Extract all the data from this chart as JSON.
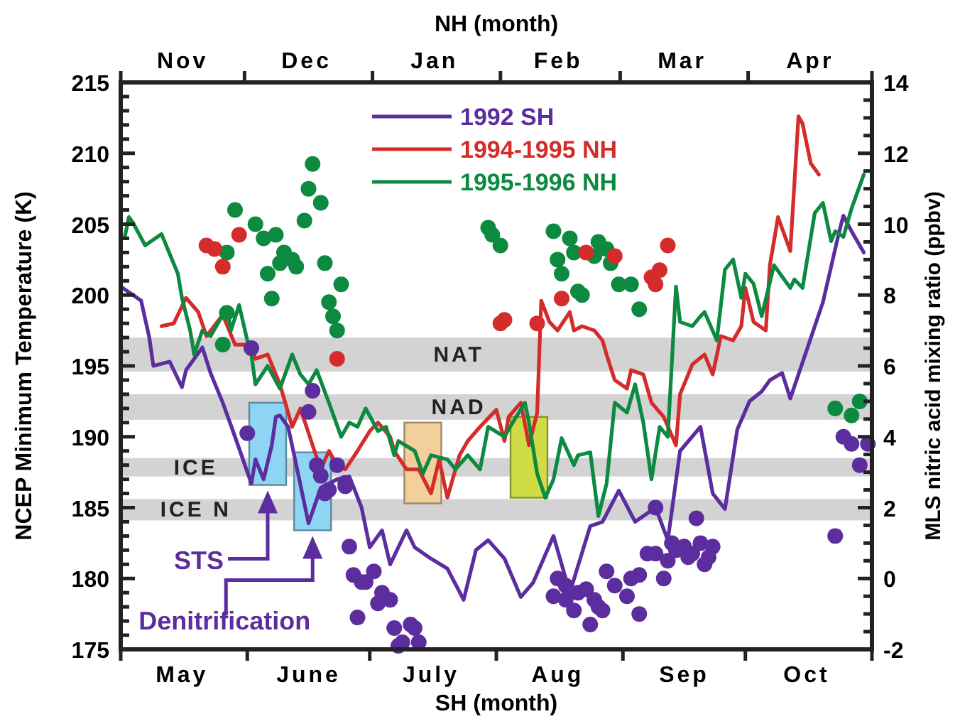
{
  "chart_data": {
    "type": "line",
    "xlabel": "SH  (month)",
    "x2label": "NH  (month)",
    "ylabel": "NCEP Minimum Temperature  (K)",
    "y2label": "MLS nitric acid mixing ratio (ppbv)",
    "legend": "top",
    "xlim": [
      "--05-01",
      "--11-01"
    ],
    "x2lim": [
      "1995-11-01",
      "1996-05-01"
    ],
    "xticks": [
      {
        "value": "--05-01",
        "label": null
      },
      {
        "value": "--05-16",
        "label": "May"
      },
      {
        "value": "--06-01",
        "label": null
      },
      {
        "value": "--06-16",
        "label": "June"
      },
      {
        "value": "--07-01",
        "label": null
      },
      {
        "value": "--07-16",
        "label": "July"
      },
      {
        "value": "--08-01",
        "label": null
      },
      {
        "value": "--08-16",
        "label": "Aug"
      },
      {
        "value": "--09-01",
        "label": null
      },
      {
        "value": "--09-16",
        "label": "Sep"
      },
      {
        "value": "--10-01",
        "label": null
      },
      {
        "value": "--10-16",
        "label": "Oct"
      },
      {
        "value": "--11-01",
        "label": null
      }
    ],
    "x2ticks": [
      {
        "value": "1995-11-01",
        "label": null
      },
      {
        "value": "1995-11-16",
        "label": "Nov"
      },
      {
        "value": "1995-12-01",
        "label": null
      },
      {
        "value": "1995-12-16",
        "label": "Dec"
      },
      {
        "value": "1996-01-01",
        "label": null
      },
      {
        "value": "1996-01-16",
        "label": "Jan"
      },
      {
        "value": "1996-02-01",
        "label": null
      },
      {
        "value": "1996-02-15",
        "label": "Feb"
      },
      {
        "value": "1996-03-01",
        "label": null
      },
      {
        "value": "1996-03-16",
        "label": "Mar"
      },
      {
        "value": "1996-04-01",
        "label": null
      },
      {
        "value": "1996-04-16",
        "label": "Apr"
      },
      {
        "value": "1996-05-01",
        "label": null
      }
    ],
    "ylim": [
      175,
      215
    ],
    "yticks": [
      175,
      {
        "value": 176,
        "label": null
      },
      {
        "value": 177,
        "label": null
      },
      {
        "value": 178,
        "label": null
      },
      {
        "value": 179,
        "label": null
      },
      180,
      {
        "value": 181,
        "label": null
      },
      {
        "value": 182,
        "label": null
      },
      {
        "value": 183,
        "label": null
      },
      {
        "value": 184,
        "label": null
      },
      185,
      {
        "value": 186,
        "label": null
      },
      {
        "value": 187,
        "label": null
      },
      {
        "value": 188,
        "label": null
      },
      {
        "value": 189,
        "label": null
      },
      190,
      {
        "value": 191,
        "label": null
      },
      {
        "value": 192,
        "label": null
      },
      {
        "value": 193,
        "label": null
      },
      {
        "value": 194,
        "label": null
      },
      195,
      {
        "value": 196,
        "label": null
      },
      {
        "value": 197,
        "label": null
      },
      {
        "value": 198,
        "label": null
      },
      {
        "value": 199,
        "label": null
      },
      200,
      {
        "value": 201,
        "label": null
      },
      {
        "value": 202,
        "label": null
      },
      {
        "value": 203,
        "label": null
      },
      {
        "value": 204,
        "label": null
      },
      205,
      {
        "value": 206,
        "label": null
      },
      {
        "value": 207,
        "label": null
      },
      {
        "value": 208,
        "label": null
      },
      {
        "value": 209,
        "label": null
      },
      210,
      {
        "value": 211,
        "label": null
      },
      {
        "value": 212,
        "label": null
      },
      {
        "value": 213,
        "label": null
      },
      {
        "value": 214,
        "label": null
      },
      215
    ],
    "y2lim": [
      -2,
      14
    ],
    "y2ticks": [
      -2,
      {
        "value": -1.5,
        "label": null
      },
      {
        "value": -1,
        "label": null
      },
      {
        "value": -0.5,
        "label": null
      },
      0,
      {
        "value": 0.5,
        "label": null
      },
      {
        "value": 1,
        "label": null
      },
      {
        "value": 1.5,
        "label": null
      },
      2,
      {
        "value": 2.5,
        "label": null
      },
      {
        "value": 3,
        "label": null
      },
      {
        "value": 3.5,
        "label": null
      },
      4,
      {
        "value": 4.5,
        "label": null
      },
      {
        "value": 5,
        "label": null
      },
      {
        "value": 5.5,
        "label": null
      },
      6,
      {
        "value": 6.5,
        "label": null
      },
      {
        "value": 7,
        "label": null
      },
      {
        "value": 7.5,
        "label": null
      },
      8,
      {
        "value": 8.5,
        "label": null
      },
      {
        "value": 9,
        "label": null
      },
      {
        "value": 9.5,
        "label": null
      },
      10,
      {
        "value": 10.5,
        "label": null
      },
      {
        "value": 11,
        "label": null
      },
      {
        "value": 11.5,
        "label": null
      },
      12,
      {
        "value": 12.5,
        "label": null
      },
      {
        "value": 13,
        "label": null
      },
      {
        "value": 13.5,
        "label": null
      },
      14
    ],
    "bands": [
      {
        "axis": "y",
        "from": 194.6,
        "to": 197.0,
        "label": "NAT",
        "color": "#d3d3d3"
      },
      {
        "axis": "y",
        "from": 191.2,
        "to": 193.0,
        "label": "NAD",
        "color": "#d3d3d3"
      },
      {
        "axis": "y",
        "from": 187.2,
        "to": 188.5,
        "label": "ICE",
        "color": "#d3d3d3"
      },
      {
        "axis": "y",
        "from": 184.1,
        "to": 185.6,
        "label": "ICE N",
        "color": "#d3d3d3"
      }
    ],
    "annotations": [
      {
        "text": "STS",
        "x": "--06-06",
        "y": 186.6
      },
      "Denitrification"
    ],
    "series": [
      {
        "type": "bar",
        "x": [
          "--06-06",
          "--06-17",
          "--07-14",
          "--08-09"
        ],
        "base": [
          186.6,
          183.4,
          185.3,
          185.7
        ],
        "values": [
          5.8,
          5.5,
          5.7,
          5.7
        ],
        "colors": [
          "#8dd5f2",
          "#8dd5f2",
          "#f3cf9c",
          "#cfdc45"
        ]
      },
      {
        "name": "1992 SH",
        "color": "#5b2d9e",
        "marker": "none",
        "x": [
          "--05-01",
          "--05-06",
          "--05-08",
          "--05-09",
          "--05-13",
          "--05-16",
          "--05-17",
          "--05-21",
          "--05-23",
          "--05-26",
          "--05-29",
          "--06-02",
          "--06-03",
          "--06-05",
          "--06-07",
          "--06-08",
          "--06-09",
          "--06-11",
          "--06-13",
          "--06-16",
          "--06-19",
          "--06-23",
          "--06-26",
          "--06-29",
          "--07-01",
          "--07-04",
          "--07-06",
          "--07-10",
          "--07-12",
          "--07-16",
          "--07-20",
          "--07-24",
          "--07-27",
          "--07-30",
          "--08-03",
          "--08-07",
          "--08-10",
          "--08-15",
          "--08-19",
          "--08-24",
          "--08-27",
          "--08-31",
          "--09-04",
          "--09-09",
          "--09-12",
          "--09-15",
          "--09-20",
          "--09-23",
          "--09-26",
          "--09-29",
          "--10-02",
          "--10-05",
          "--10-07",
          "--10-10",
          "--10-12",
          "--10-16",
          "--10-18",
          "--10-20",
          "--10-24",
          "--10-25",
          "--10-27",
          "--10-30"
        ],
        "values": [
          200.6,
          199.6,
          197.0,
          195.0,
          195.3,
          193.5,
          194.7,
          196.3,
          194.5,
          192.4,
          190.0,
          186.7,
          188.4,
          187.0,
          189.4,
          191.4,
          191.5,
          190.7,
          188.0,
          183.9,
          186.4,
          187.0,
          187.2,
          185.0,
          182.2,
          183.4,
          181.0,
          183.4,
          182.2,
          181.4,
          180.7,
          178.5,
          182.0,
          182.7,
          181.4,
          178.7,
          179.7,
          183.0,
          179.0,
          183.7,
          184.0,
          186.2,
          184.0,
          185.0,
          182.7,
          189.0,
          190.7,
          186.0,
          184.9,
          190.5,
          192.5,
          193.2,
          194.0,
          194.5,
          192.7,
          196.1,
          197.8,
          199.5,
          204.5,
          205.6,
          204.5,
          203.0
        ]
      },
      {
        "name": "1994-1995 NH",
        "color": "#d42b2b",
        "marker": "none",
        "x": [
          "--05-11",
          "--05-14",
          "--05-17",
          "--05-20",
          "--05-22",
          "--05-26",
          "--05-29",
          "--06-02",
          "--06-03",
          "--06-06",
          "--06-08",
          "--06-09",
          "--06-12",
          "--06-14",
          "--06-17",
          "--06-19",
          "--06-21",
          "--06-23",
          "--06-25",
          "--06-28",
          "--07-01",
          "--07-03",
          "--07-06",
          "--07-07",
          "--07-10",
          "--07-13",
          "--07-16",
          "--07-18",
          "--07-20",
          "--07-23",
          "--07-25",
          "--07-28",
          "--08-01",
          "--08-03",
          "--08-04",
          "--08-07",
          "--08-09",
          "--08-11",
          "--08-12",
          "--08-14",
          "--08-16",
          "--08-19",
          "--08-20",
          "--08-22",
          "--08-25",
          "--08-27",
          "--08-28",
          "--08-30",
          "--09-02",
          "--09-03",
          "--09-06",
          "--09-08",
          "--09-11",
          "--09-14",
          "--09-15",
          "--09-18",
          "--09-21",
          "--09-23",
          "--09-25",
          "--09-28",
          "--09-30",
          "--10-01",
          "--10-03",
          "--10-06",
          "--10-07",
          "--10-09",
          "--10-12",
          "--10-14",
          "--10-15",
          "--10-17",
          "--10-19"
        ],
        "values": [
          197.8,
          198.0,
          199.8,
          198.8,
          197.1,
          198.6,
          196.5,
          196.5,
          195.5,
          195.8,
          194.4,
          193.7,
          190.7,
          192.0,
          189.4,
          187.7,
          189.0,
          188.0,
          187.7,
          189.0,
          190.4,
          191.0,
          190.0,
          189.0,
          187.7,
          187.7,
          186.0,
          188.4,
          185.7,
          188.7,
          189.7,
          190.7,
          191.9,
          189.7,
          191.4,
          192.4,
          189.4,
          191.7,
          199.6,
          198.1,
          197.5,
          198.8,
          197.5,
          197.8,
          197.5,
          196.8,
          195.8,
          194.0,
          193.4,
          194.7,
          194.4,
          192.4,
          191.4,
          189.4,
          193.0,
          195.1,
          195.8,
          194.4,
          197.1,
          196.8,
          197.8,
          200.5,
          198.1,
          197.5,
          202.1,
          205.5,
          203.1,
          212.6,
          212.1,
          209.3,
          208.5
        ]
      },
      {
        "name": "1995-1996 NH",
        "color": "#0b8a40",
        "marker": "none",
        "x": [
          "--05-02",
          "--05-03",
          "--05-04",
          "--05-07",
          "--05-11",
          "--05-15",
          "--05-16",
          "--05-18",
          "--05-19",
          "--05-21",
          "--05-23",
          "--05-27",
          "--05-28",
          "--05-30",
          "--06-01",
          "--06-02",
          "--06-03",
          "--06-06",
          "--06-09",
          "--06-12",
          "--06-14",
          "--06-16",
          "--06-18",
          "--06-21",
          "--06-24",
          "--06-26",
          "--06-28",
          "--06-30",
          "--07-03",
          "--07-05",
          "--07-07",
          "--07-08",
          "--07-12",
          "--07-14",
          "--07-16",
          "--07-20",
          "--07-22",
          "--07-25",
          "--07-28",
          "--07-30",
          "--08-03",
          "--08-05",
          "--08-08",
          "--08-09",
          "--08-11",
          "--08-13",
          "--08-15",
          "--08-17",
          "--08-20",
          "--08-21",
          "--08-24",
          "--08-26",
          "--08-28",
          "--08-30",
          "--09-02",
          "--09-04",
          "--09-06",
          "--09-08",
          "--09-10",
          "--09-12",
          "--09-14",
          "--09-15",
          "--09-18",
          "--09-20",
          "--09-21",
          "--09-24",
          "--09-26",
          "--09-28",
          "--09-30",
          "--10-01",
          "--10-03",
          "--10-05",
          "--10-08",
          "--10-12",
          "--10-13",
          "--10-15",
          "--10-18",
          "--10-20",
          "--10-22",
          "--10-23",
          "--10-25",
          "--10-27",
          "--10-30"
        ],
        "values": [
          204.1,
          205.5,
          205.1,
          203.5,
          204.3,
          201.5,
          199.8,
          197.5,
          195.8,
          197.5,
          197.1,
          199.1,
          197.5,
          199.3,
          196.8,
          195.8,
          193.7,
          195.0,
          193.4,
          195.8,
          194.4,
          193.7,
          194.7,
          192.4,
          190.0,
          191.0,
          190.7,
          192.0,
          190.4,
          190.7,
          188.7,
          189.7,
          189.0,
          187.4,
          188.7,
          188.4,
          187.7,
          188.7,
          187.7,
          190.7,
          190.0,
          191.0,
          192.4,
          191.0,
          187.4,
          185.7,
          187.0,
          189.9,
          188.0,
          188.7,
          188.9,
          184.4,
          186.7,
          192.4,
          191.7,
          193.7,
          191.0,
          187.0,
          190.7,
          190.0,
          200.6,
          198.1,
          197.8,
          198.5,
          198.8,
          196.8,
          201.8,
          202.5,
          199.8,
          201.5,
          200.8,
          198.5,
          202.1,
          200.5,
          201.1,
          200.5,
          205.8,
          206.5,
          203.8,
          204.5,
          204.1,
          206.1,
          208.5
        ]
      },
      {
        "type": "scatter",
        "axis": "y2",
        "color": "#0b8a40",
        "marker": "circle",
        "x": [
          "--05-29",
          "--06-03",
          "--06-05",
          "--06-08",
          "--05-27",
          "--06-10",
          "--06-09",
          "--06-12",
          "--06-13",
          "--06-06",
          "--06-07",
          "--05-27",
          "--05-26",
          "--06-17",
          "--06-16",
          "--06-19",
          "--06-15",
          "--06-20",
          "--06-24",
          "--06-21",
          "--06-22",
          "--06-23",
          "--07-30",
          "--07-31",
          "--08-02",
          "--08-15",
          "--08-19",
          "--08-20",
          "--08-16",
          "--08-17",
          "--08-26",
          "--08-28",
          "--08-25",
          "--08-29",
          "--08-21",
          "--08-22",
          "--08-31",
          "--09-03",
          "--09-05",
          "--10-23",
          "--10-29",
          "--10-27"
        ],
        "values": [
          10.4,
          10.0,
          9.6,
          9.7,
          9.2,
          9.2,
          8.9,
          9.0,
          8.8,
          8.6,
          7.9,
          7.5,
          6.6,
          11.7,
          11.0,
          10.6,
          10.1,
          8.9,
          8.3,
          7.8,
          7.4,
          7.0,
          9.9,
          9.7,
          9.4,
          9.8,
          9.6,
          9.2,
          9.0,
          8.6,
          9.5,
          9.3,
          9.1,
          8.9,
          8.1,
          8.0,
          8.3,
          8.3,
          7.6,
          4.8,
          5.0,
          4.6
        ]
      },
      {
        "type": "scatter",
        "axis": "y2",
        "color": "#d42b2b",
        "marker": "circle",
        "x": [
          "--05-22",
          "--05-24",
          "--05-26",
          "--05-30",
          "--08-02",
          "--08-03",
          "--08-11",
          "--08-17",
          "--08-23",
          "--08-30",
          "--09-12",
          "--09-10",
          "--09-08",
          "--09-09",
          "--06-23"
        ],
        "values": [
          9.4,
          9.3,
          8.8,
          9.7,
          7.2,
          7.3,
          7.2,
          7.9,
          9.2,
          9.1,
          9.4,
          8.7,
          8.5,
          8.3,
          6.2
        ]
      },
      {
        "type": "scatter",
        "axis": "y2",
        "color": "#5b2d9e",
        "marker": "circle",
        "x": [
          "--06-02",
          "--06-01",
          "--06-17",
          "--06-16",
          "--06-18",
          "--06-23",
          "--06-19",
          "--06-21",
          "--06-25",
          "--06-25",
          "--06-20",
          "--06-26",
          "--06-27",
          "--06-29",
          "--07-02",
          "--06-30",
          "--07-04",
          "--07-06",
          "--07-03",
          "--06-28",
          "--07-07",
          "--07-11",
          "--07-12",
          "--07-09",
          "--07-08",
          "--07-13",
          "--08-15",
          "--08-16",
          "--08-18",
          "--08-18",
          "--08-20",
          "--08-21",
          "--08-23",
          "--08-25",
          "--08-26",
          "--08-24",
          "--08-27",
          "--08-28",
          "--08-30",
          "--09-02",
          "--09-03",
          "--09-05",
          "--09-05",
          "--09-07",
          "--09-09",
          "--09-09",
          "--09-11",
          "--09-12",
          "--09-13",
          "--09-14",
          "--09-16",
          "--09-17",
          "--09-18",
          "--09-19",
          "--09-20",
          "--09-21",
          "--09-22",
          "--09-23",
          "--10-23",
          "--10-25",
          "--10-27",
          "--10-31",
          "--10-29"
        ],
        "values": [
          6.5,
          4.1,
          5.3,
          4.7,
          3.2,
          3.2,
          2.9,
          2.5,
          2.7,
          2.6,
          2.4,
          0.9,
          0.1,
          -0.1,
          0.2,
          -0.1,
          -0.4,
          -0.6,
          -0.7,
          -1.1,
          -1.4,
          -1.3,
          -1.4,
          -1.8,
          -1.9,
          -1.8,
          -0.5,
          0.0,
          -0.2,
          -0.6,
          -0.9,
          -0.4,
          -0.3,
          -0.6,
          -0.8,
          -1.3,
          -0.9,
          0.2,
          -0.2,
          -0.5,
          0.0,
          0.1,
          -1.0,
          0.7,
          0.7,
          2.0,
          0.0,
          0.5,
          1.0,
          0.8,
          0.9,
          0.6,
          0.7,
          1.7,
          1.0,
          0.4,
          0.6,
          0.9,
          1.2,
          4.0,
          3.8,
          3.8,
          3.2
        ]
      }
    ]
  }
}
